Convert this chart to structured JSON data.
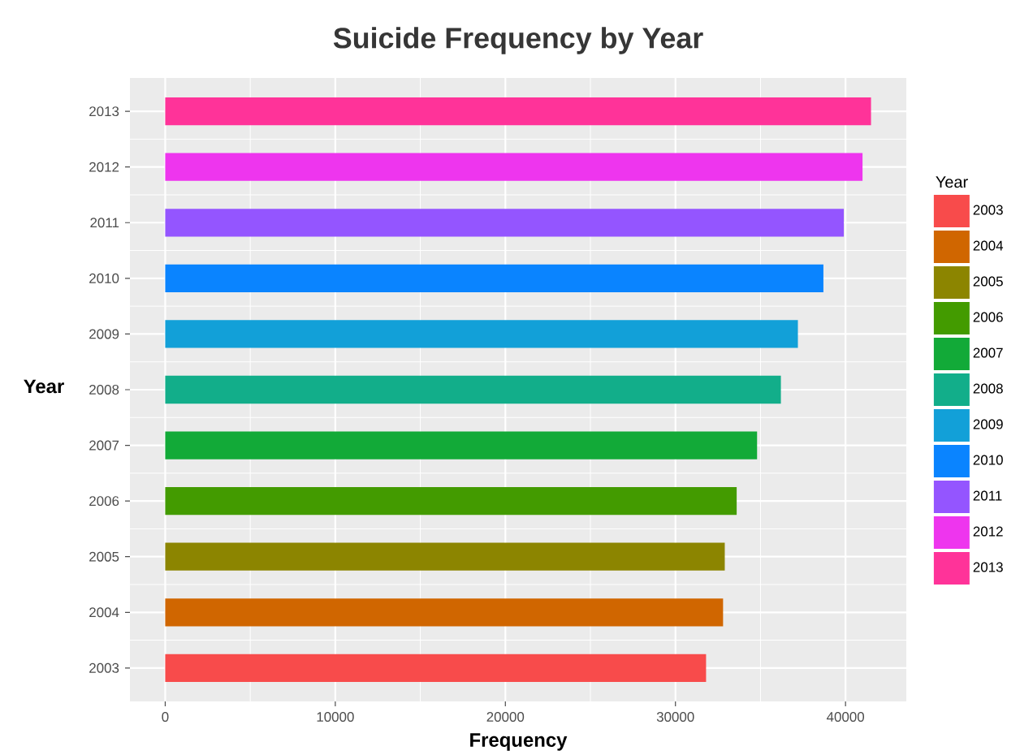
{
  "chart_data": {
    "type": "bar",
    "orientation": "horizontal",
    "title": "Suicide Frequency by Year",
    "xlabel": "Frequency",
    "ylabel": "Year",
    "legend_title": "Year",
    "categories": [
      "2013",
      "2012",
      "2011",
      "2010",
      "2009",
      "2008",
      "2007",
      "2006",
      "2005",
      "2004",
      "2003"
    ],
    "series": [
      {
        "name": "2003",
        "color": "#f84b4b",
        "values": [
          null,
          null,
          null,
          null,
          null,
          null,
          null,
          null,
          null,
          null,
          31800
        ]
      },
      {
        "name": "2004",
        "color": "#d06600",
        "values": [
          null,
          null,
          null,
          null,
          null,
          null,
          null,
          null,
          null,
          32800,
          null
        ]
      },
      {
        "name": "2005",
        "color": "#8c8500",
        "values": [
          null,
          null,
          null,
          null,
          null,
          null,
          null,
          null,
          32900,
          null,
          null
        ]
      },
      {
        "name": "2006",
        "color": "#439b00",
        "values": [
          null,
          null,
          null,
          null,
          null,
          null,
          null,
          33600,
          null,
          null,
          null
        ]
      },
      {
        "name": "2007",
        "color": "#12aa38",
        "values": [
          null,
          null,
          null,
          null,
          null,
          null,
          34800,
          null,
          null,
          null,
          null
        ]
      },
      {
        "name": "2008",
        "color": "#12ae8a",
        "values": [
          null,
          null,
          null,
          null,
          null,
          36200,
          null,
          null,
          null,
          null,
          null
        ]
      },
      {
        "name": "2009",
        "color": "#12a0d8",
        "values": [
          null,
          null,
          null,
          null,
          37200,
          null,
          null,
          null,
          null,
          null,
          null
        ]
      },
      {
        "name": "2010",
        "color": "#0a84ff",
        "values": [
          null,
          null,
          null,
          38700,
          null,
          null,
          null,
          null,
          null,
          null,
          null
        ]
      },
      {
        "name": "2011",
        "color": "#9455ff",
        "values": [
          null,
          null,
          39900,
          null,
          null,
          null,
          null,
          null,
          null,
          null,
          null
        ]
      },
      {
        "name": "2012",
        "color": "#ee35ee",
        "values": [
          null,
          41000,
          null,
          null,
          null,
          null,
          null,
          null,
          null,
          null,
          null
        ]
      },
      {
        "name": "2013",
        "color": "#ff3399",
        "values": [
          41500,
          null,
          null,
          null,
          null,
          null,
          null,
          null,
          null,
          null,
          null
        ]
      }
    ],
    "xlim": [
      -2075,
      43575
    ],
    "xticks": [
      0,
      10000,
      20000,
      30000,
      40000
    ],
    "grid": true,
    "legend": "right"
  }
}
